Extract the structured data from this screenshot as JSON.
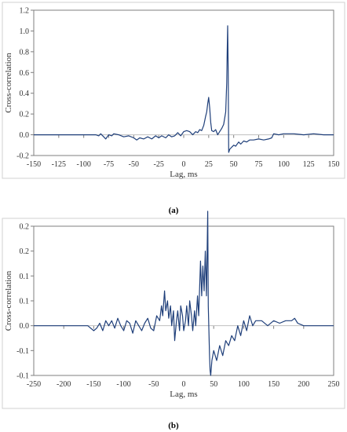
{
  "chart_data": [
    {
      "type": "line",
      "caption": "(a)",
      "xlabel": "Lag, ms",
      "ylabel": "Cross-correlation",
      "xlim": [
        -150,
        150
      ],
      "ylim": [
        -0.2,
        1.2
      ],
      "xticks": [
        -150,
        -125,
        -100,
        -75,
        -50,
        -25,
        0,
        25,
        50,
        75,
        100,
        125,
        150
      ],
      "yticks": [
        -0.2,
        0.0,
        0.2,
        0.4,
        0.6,
        0.8,
        1.0,
        1.2
      ],
      "ytick_labels": [
        "-0.2",
        "0.0",
        "0.2",
        "0.4",
        "0.6",
        "0.8",
        "1.0",
        "1.2"
      ],
      "grid": false,
      "line_color": "#1f3f7a",
      "series": [
        {
          "x": [
            -150,
            -120,
            -100,
            -92,
            -88,
            -85,
            -83,
            -80,
            -78,
            -75,
            -72,
            -70,
            -65,
            -60,
            -55,
            -50,
            -47,
            -44,
            -40,
            -36,
            -32,
            -28,
            -25,
            -22,
            -18,
            -15,
            -12,
            -9,
            -6,
            -3,
            0,
            3,
            6,
            9,
            12,
            14,
            16,
            18,
            20,
            22,
            23,
            24,
            25,
            26,
            27,
            28,
            30,
            32,
            34,
            36,
            38,
            40,
            42,
            43,
            43.5,
            44,
            44.5,
            45,
            46,
            48,
            50,
            52,
            55,
            57,
            60,
            63,
            66,
            70,
            75,
            80,
            85,
            88,
            90,
            95,
            100,
            110,
            120,
            130,
            140,
            150
          ],
          "y": [
            0.0,
            0.0,
            0.0,
            0.0,
            0.0,
            -0.01,
            0.01,
            -0.02,
            -0.04,
            0.0,
            -0.01,
            0.01,
            0.0,
            -0.02,
            -0.01,
            -0.03,
            -0.05,
            -0.03,
            -0.04,
            -0.02,
            -0.04,
            -0.01,
            -0.03,
            -0.01,
            -0.03,
            0.0,
            -0.02,
            -0.01,
            0.02,
            -0.01,
            0.03,
            0.04,
            0.03,
            0.0,
            0.03,
            0.02,
            0.05,
            0.04,
            0.09,
            0.18,
            0.22,
            0.3,
            0.36,
            0.26,
            0.12,
            0.04,
            0.03,
            0.05,
            0.0,
            0.03,
            0.06,
            0.1,
            0.22,
            0.5,
            0.8,
            1.05,
            0.6,
            -0.17,
            -0.14,
            -0.12,
            -0.1,
            -0.11,
            -0.07,
            -0.09,
            -0.06,
            -0.07,
            -0.05,
            -0.05,
            -0.04,
            -0.05,
            -0.04,
            -0.03,
            0.01,
            0.0,
            0.01,
            0.01,
            0.0,
            0.01,
            0.0,
            0.0
          ]
        }
      ]
    },
    {
      "type": "line",
      "caption": "(b)",
      "xlabel": "Lag, ms",
      "ylabel": "Cross-correlation",
      "xlim": [
        -250,
        250
      ],
      "ylim": [
        -0.1,
        0.2
      ],
      "xticks": [
        -250,
        -200,
        -150,
        -100,
        -50,
        0,
        50,
        100,
        150,
        200,
        250
      ],
      "yticks": [
        -0.1,
        -0.05,
        0.0,
        0.05,
        0.1,
        0.15,
        0.2
      ],
      "ytick_labels": [
        "-0.1",
        "-0.1",
        "0.0",
        "0.1",
        "0.1",
        "0.2",
        "0.2"
      ],
      "grid": false,
      "line_color": "#1f3f7a",
      "series": [
        {
          "x": [
            -250,
            -200,
            -160,
            -150,
            -145,
            -140,
            -135,
            -130,
            -125,
            -120,
            -115,
            -110,
            -105,
            -100,
            -95,
            -90,
            -85,
            -80,
            -75,
            -70,
            -65,
            -60,
            -55,
            -50,
            -45,
            -40,
            -37,
            -35,
            -32,
            -30,
            -27,
            -25,
            -22,
            -20,
            -17,
            -15,
            -12,
            -10,
            -7,
            -5,
            -2,
            0,
            3,
            5,
            8,
            10,
            13,
            15,
            18,
            20,
            23,
            25,
            28,
            30,
            32,
            34,
            36,
            38,
            40,
            41,
            42,
            43,
            44,
            45,
            47,
            50,
            55,
            60,
            65,
            70,
            75,
            80,
            85,
            90,
            95,
            100,
            105,
            110,
            115,
            120,
            130,
            140,
            150,
            160,
            170,
            180,
            185,
            190,
            200,
            220,
            250
          ],
          "y": [
            0.0,
            0.0,
            0.0,
            -0.01,
            -0.005,
            0.005,
            -0.01,
            0.01,
            0.0,
            0.01,
            -0.005,
            0.015,
            0.0,
            -0.01,
            0.01,
            0.005,
            -0.015,
            0.01,
            0.0,
            -0.01,
            0.005,
            0.015,
            -0.005,
            -0.01,
            0.02,
            0.01,
            0.04,
            0.02,
            0.07,
            0.03,
            0.05,
            0.015,
            0.04,
            0.0,
            0.03,
            -0.03,
            0.01,
            0.03,
            -0.01,
            0.04,
            0.02,
            -0.01,
            0.01,
            0.04,
            0.0,
            0.05,
            0.02,
            -0.01,
            0.03,
            0.0,
            0.06,
            0.02,
            0.13,
            0.06,
            0.12,
            0.07,
            0.15,
            0.06,
            0.23,
            0.04,
            -0.01,
            -0.06,
            -0.09,
            -0.1,
            -0.07,
            -0.05,
            -0.07,
            -0.04,
            -0.06,
            -0.03,
            -0.04,
            -0.02,
            -0.03,
            0.0,
            -0.02,
            0.01,
            -0.01,
            0.02,
            0.0,
            0.01,
            0.01,
            0.0,
            0.01,
            0.005,
            0.01,
            0.01,
            0.015,
            0.005,
            0.0,
            0.0,
            0.0
          ]
        }
      ]
    }
  ]
}
